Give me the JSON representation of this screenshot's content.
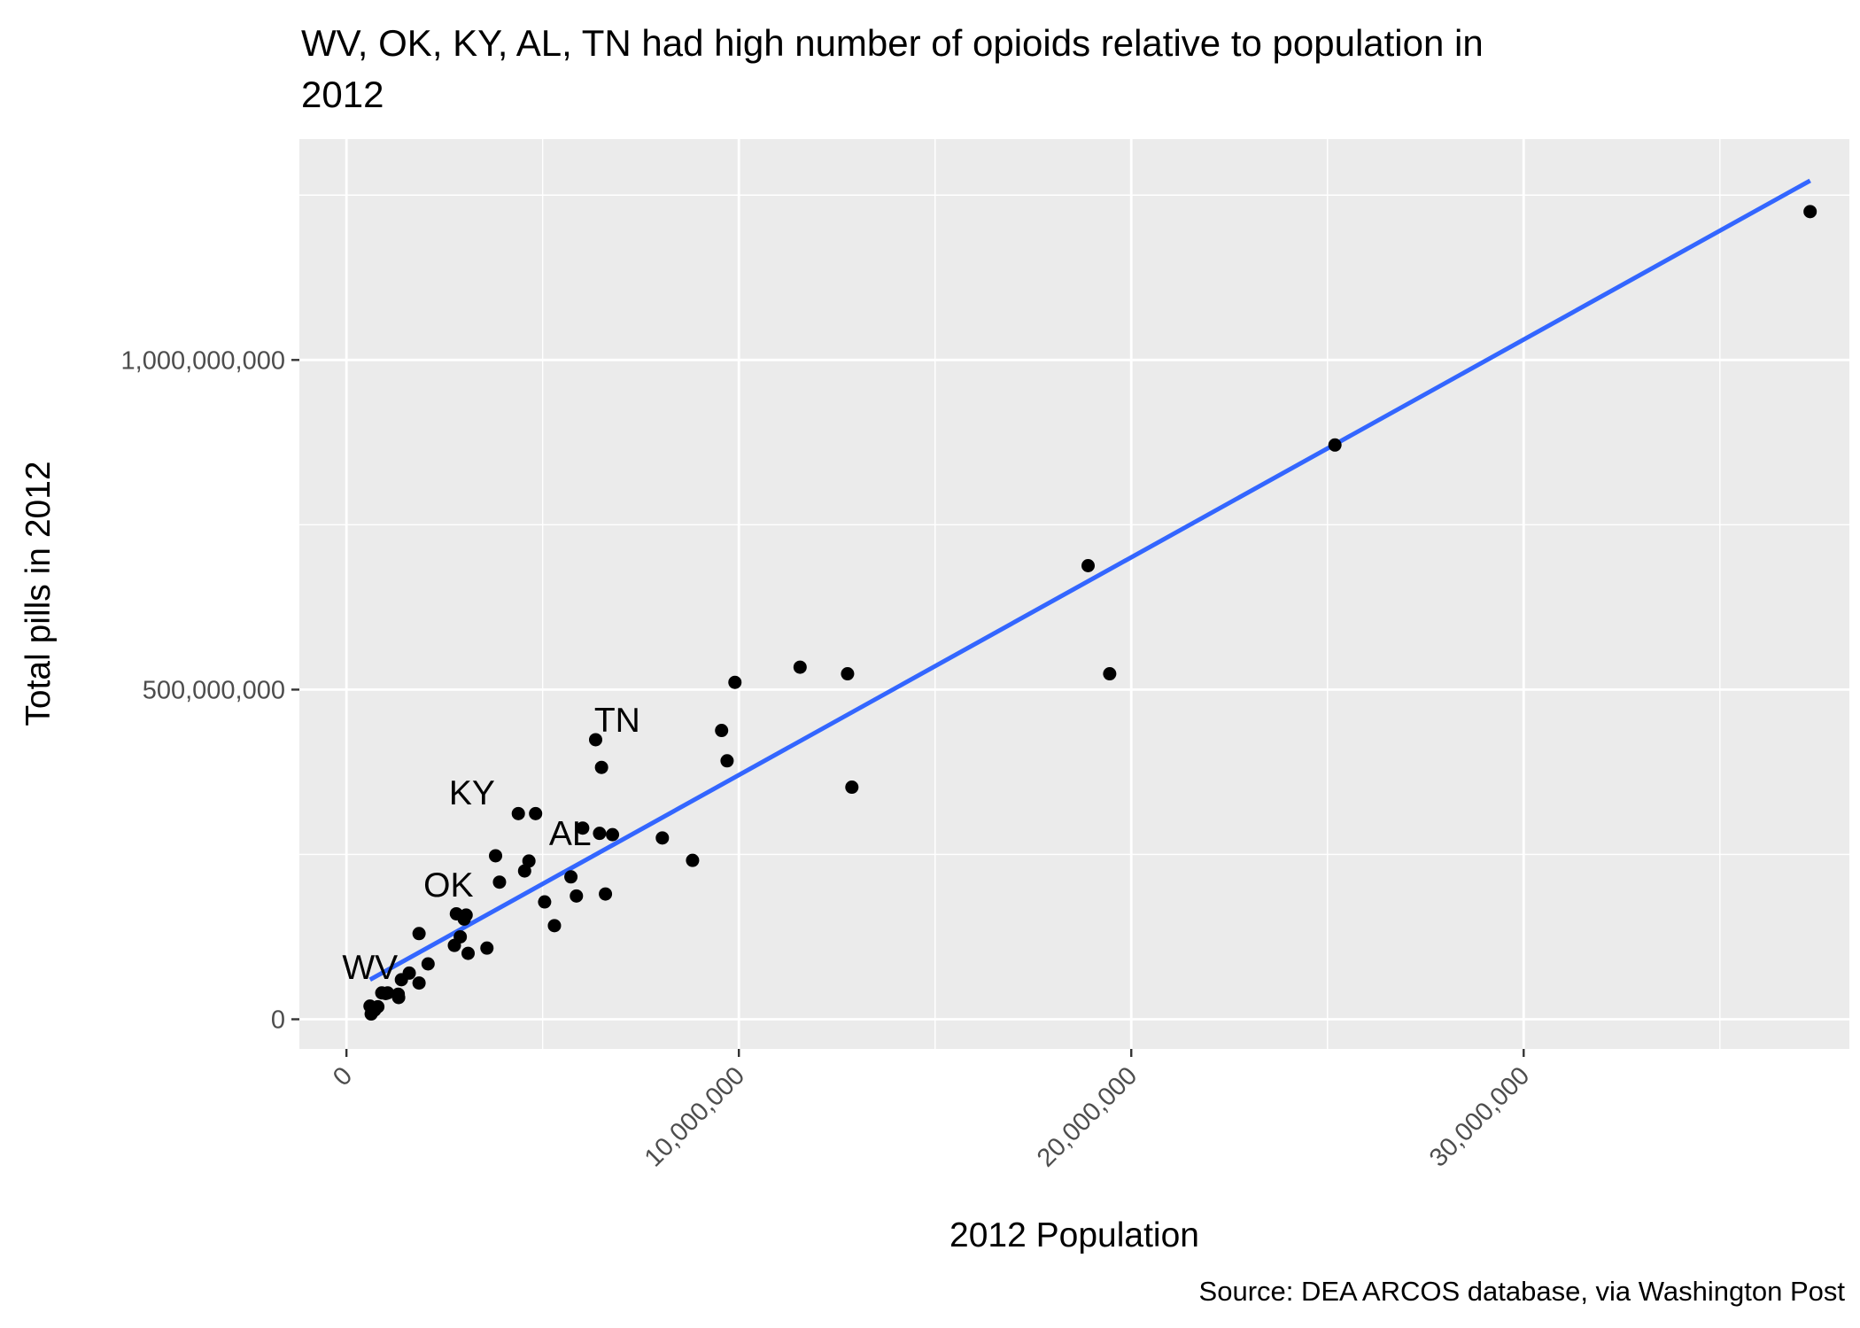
{
  "chart_data": {
    "type": "scatter",
    "title": "WV, OK, KY, AL, TN had high number of opioids relative to population in 2012",
    "title_lines": [
      "WV, OK, KY, AL, TN had high number of opioids relative to population in",
      "2012"
    ],
    "xlabel": "2012 Population",
    "ylabel": "Total pills in 2012",
    "caption": "Source: DEA ARCOS database, via Washington Post",
    "xlim": [
      -1200000,
      38300000
    ],
    "ylim": [
      -45000000,
      1335000000
    ],
    "x_ticks": [
      0,
      10000000,
      20000000,
      30000000
    ],
    "x_tick_labels": [
      "0",
      "10,000,000",
      "20,000,000",
      "30,000,000"
    ],
    "x_minor_ticks": [
      5000000,
      15000000,
      25000000,
      35000000
    ],
    "y_ticks": [
      0,
      500000000,
      1000000000
    ],
    "y_tick_labels": [
      "0",
      "500,000,000",
      "1,000,000,000"
    ],
    "y_minor_ticks": [
      250000000,
      750000000,
      1250000000
    ],
    "grid": true,
    "background": "#ebebeb",
    "grid_color": "#ffffff",
    "point_color": "#000000",
    "trend_color": "#3366ff",
    "points": [
      {
        "x": 600000,
        "y": 20000000
      },
      {
        "x": 630000,
        "y": 8000000
      },
      {
        "x": 720000,
        "y": 14000000
      },
      {
        "x": 800000,
        "y": 19000000
      },
      {
        "x": 900000,
        "y": 40000000
      },
      {
        "x": 1000000,
        "y": 39000000
      },
      {
        "x": 1050000,
        "y": 40000000
      },
      {
        "x": 1320000,
        "y": 38000000
      },
      {
        "x": 1330000,
        "y": 33000000
      },
      {
        "x": 1400000,
        "y": 60000000
      },
      {
        "x": 1600000,
        "y": 70000000
      },
      {
        "x": 1850000,
        "y": 55000000
      },
      {
        "x": 1850000,
        "y": 130000000
      },
      {
        "x": 2080000,
        "y": 84000000
      },
      {
        "x": 2750000,
        "y": 112000000
      },
      {
        "x": 2800000,
        "y": 160000000
      },
      {
        "x": 2900000,
        "y": 125000000
      },
      {
        "x": 3000000,
        "y": 152000000
      },
      {
        "x": 3050000,
        "y": 158000000
      },
      {
        "x": 3100000,
        "y": 100000000
      },
      {
        "x": 3580000,
        "y": 108000000
      },
      {
        "x": 3800000,
        "y": 248000000
      },
      {
        "x": 3900000,
        "y": 208000000
      },
      {
        "x": 4380000,
        "y": 312000000
      },
      {
        "x": 4540000,
        "y": 225000000
      },
      {
        "x": 4650000,
        "y": 240000000
      },
      {
        "x": 4820000,
        "y": 312000000
      },
      {
        "x": 5050000,
        "y": 178000000
      },
      {
        "x": 5300000,
        "y": 142000000
      },
      {
        "x": 5720000,
        "y": 216000000
      },
      {
        "x": 5860000,
        "y": 187000000
      },
      {
        "x": 6020000,
        "y": 290000000
      },
      {
        "x": 6350000,
        "y": 424000000
      },
      {
        "x": 6450000,
        "y": 282000000
      },
      {
        "x": 6500000,
        "y": 382000000
      },
      {
        "x": 6600000,
        "y": 190000000
      },
      {
        "x": 6780000,
        "y": 280000000
      },
      {
        "x": 8050000,
        "y": 275000000
      },
      {
        "x": 8820000,
        "y": 241000000
      },
      {
        "x": 9560000,
        "y": 438000000
      },
      {
        "x": 9700000,
        "y": 392000000
      },
      {
        "x": 9900000,
        "y": 511000000
      },
      {
        "x": 11560000,
        "y": 534000000
      },
      {
        "x": 12770000,
        "y": 524000000
      },
      {
        "x": 12880000,
        "y": 352000000
      },
      {
        "x": 18900000,
        "y": 688000000
      },
      {
        "x": 19450000,
        "y": 524000000
      },
      {
        "x": 25190000,
        "y": 871000000
      },
      {
        "x": 37300000,
        "y": 1225000000
      }
    ],
    "trend_line": {
      "x": [
        600000,
        37300000
      ],
      "y": [
        60000000,
        1272000000
      ]
    },
    "labels": [
      {
        "text": "WV",
        "x": 600000,
        "y": 80000000
      },
      {
        "text": "OK",
        "x": 2600000,
        "y": 205000000
      },
      {
        "text": "KY",
        "x": 3200000,
        "y": 345000000
      },
      {
        "text": "AL",
        "x": 5700000,
        "y": 283000000
      },
      {
        "text": "TN",
        "x": 6900000,
        "y": 455000000
      }
    ]
  }
}
